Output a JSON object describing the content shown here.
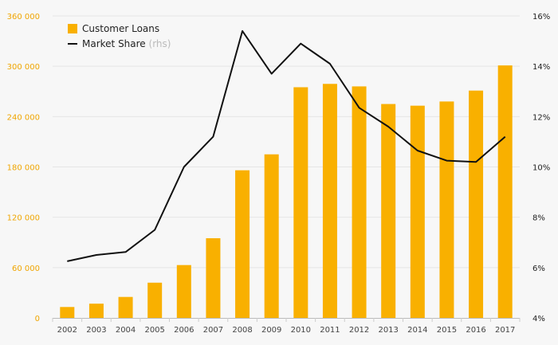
{
  "colors": {
    "bar": "#f9b000",
    "line": "#111111",
    "left_tick": "#f0a500",
    "right_tick": "#222222",
    "grid": "#e6e6e6"
  },
  "chart_data": {
    "type": "bar",
    "title": "",
    "categories": [
      "2002",
      "2003",
      "2004",
      "2005",
      "2006",
      "2007",
      "2008",
      "2009",
      "2010",
      "2011",
      "2012",
      "2013",
      "2014",
      "2015",
      "2016",
      "2017"
    ],
    "series": [
      {
        "name": "Customer Loans",
        "type": "bar",
        "axis": "left",
        "values": [
          13000,
          17000,
          25000,
          42000,
          63000,
          95000,
          176000,
          195000,
          275000,
          279000,
          276000,
          255000,
          253000,
          258000,
          271000,
          301000
        ]
      },
      {
        "name": "Market Share",
        "note": "(rhs)",
        "type": "line",
        "axis": "right",
        "values": [
          6.25,
          6.5,
          6.62,
          7.5,
          10.0,
          11.2,
          15.4,
          13.7,
          14.9,
          14.1,
          12.35,
          11.6,
          10.65,
          10.25,
          10.2,
          11.2
        ]
      }
    ],
    "left_axis": {
      "min": 0,
      "max": 360000,
      "ticks": [
        "0",
        "60 000",
        "120 000",
        "180 000",
        "240 000",
        "300 000",
        "360 000"
      ]
    },
    "right_axis": {
      "min": 4,
      "max": 16,
      "ticks": [
        "4%",
        "6%",
        "8%",
        "10%",
        "12%",
        "14%",
        "16%"
      ]
    },
    "grid": true,
    "legend_position": "top-left"
  }
}
